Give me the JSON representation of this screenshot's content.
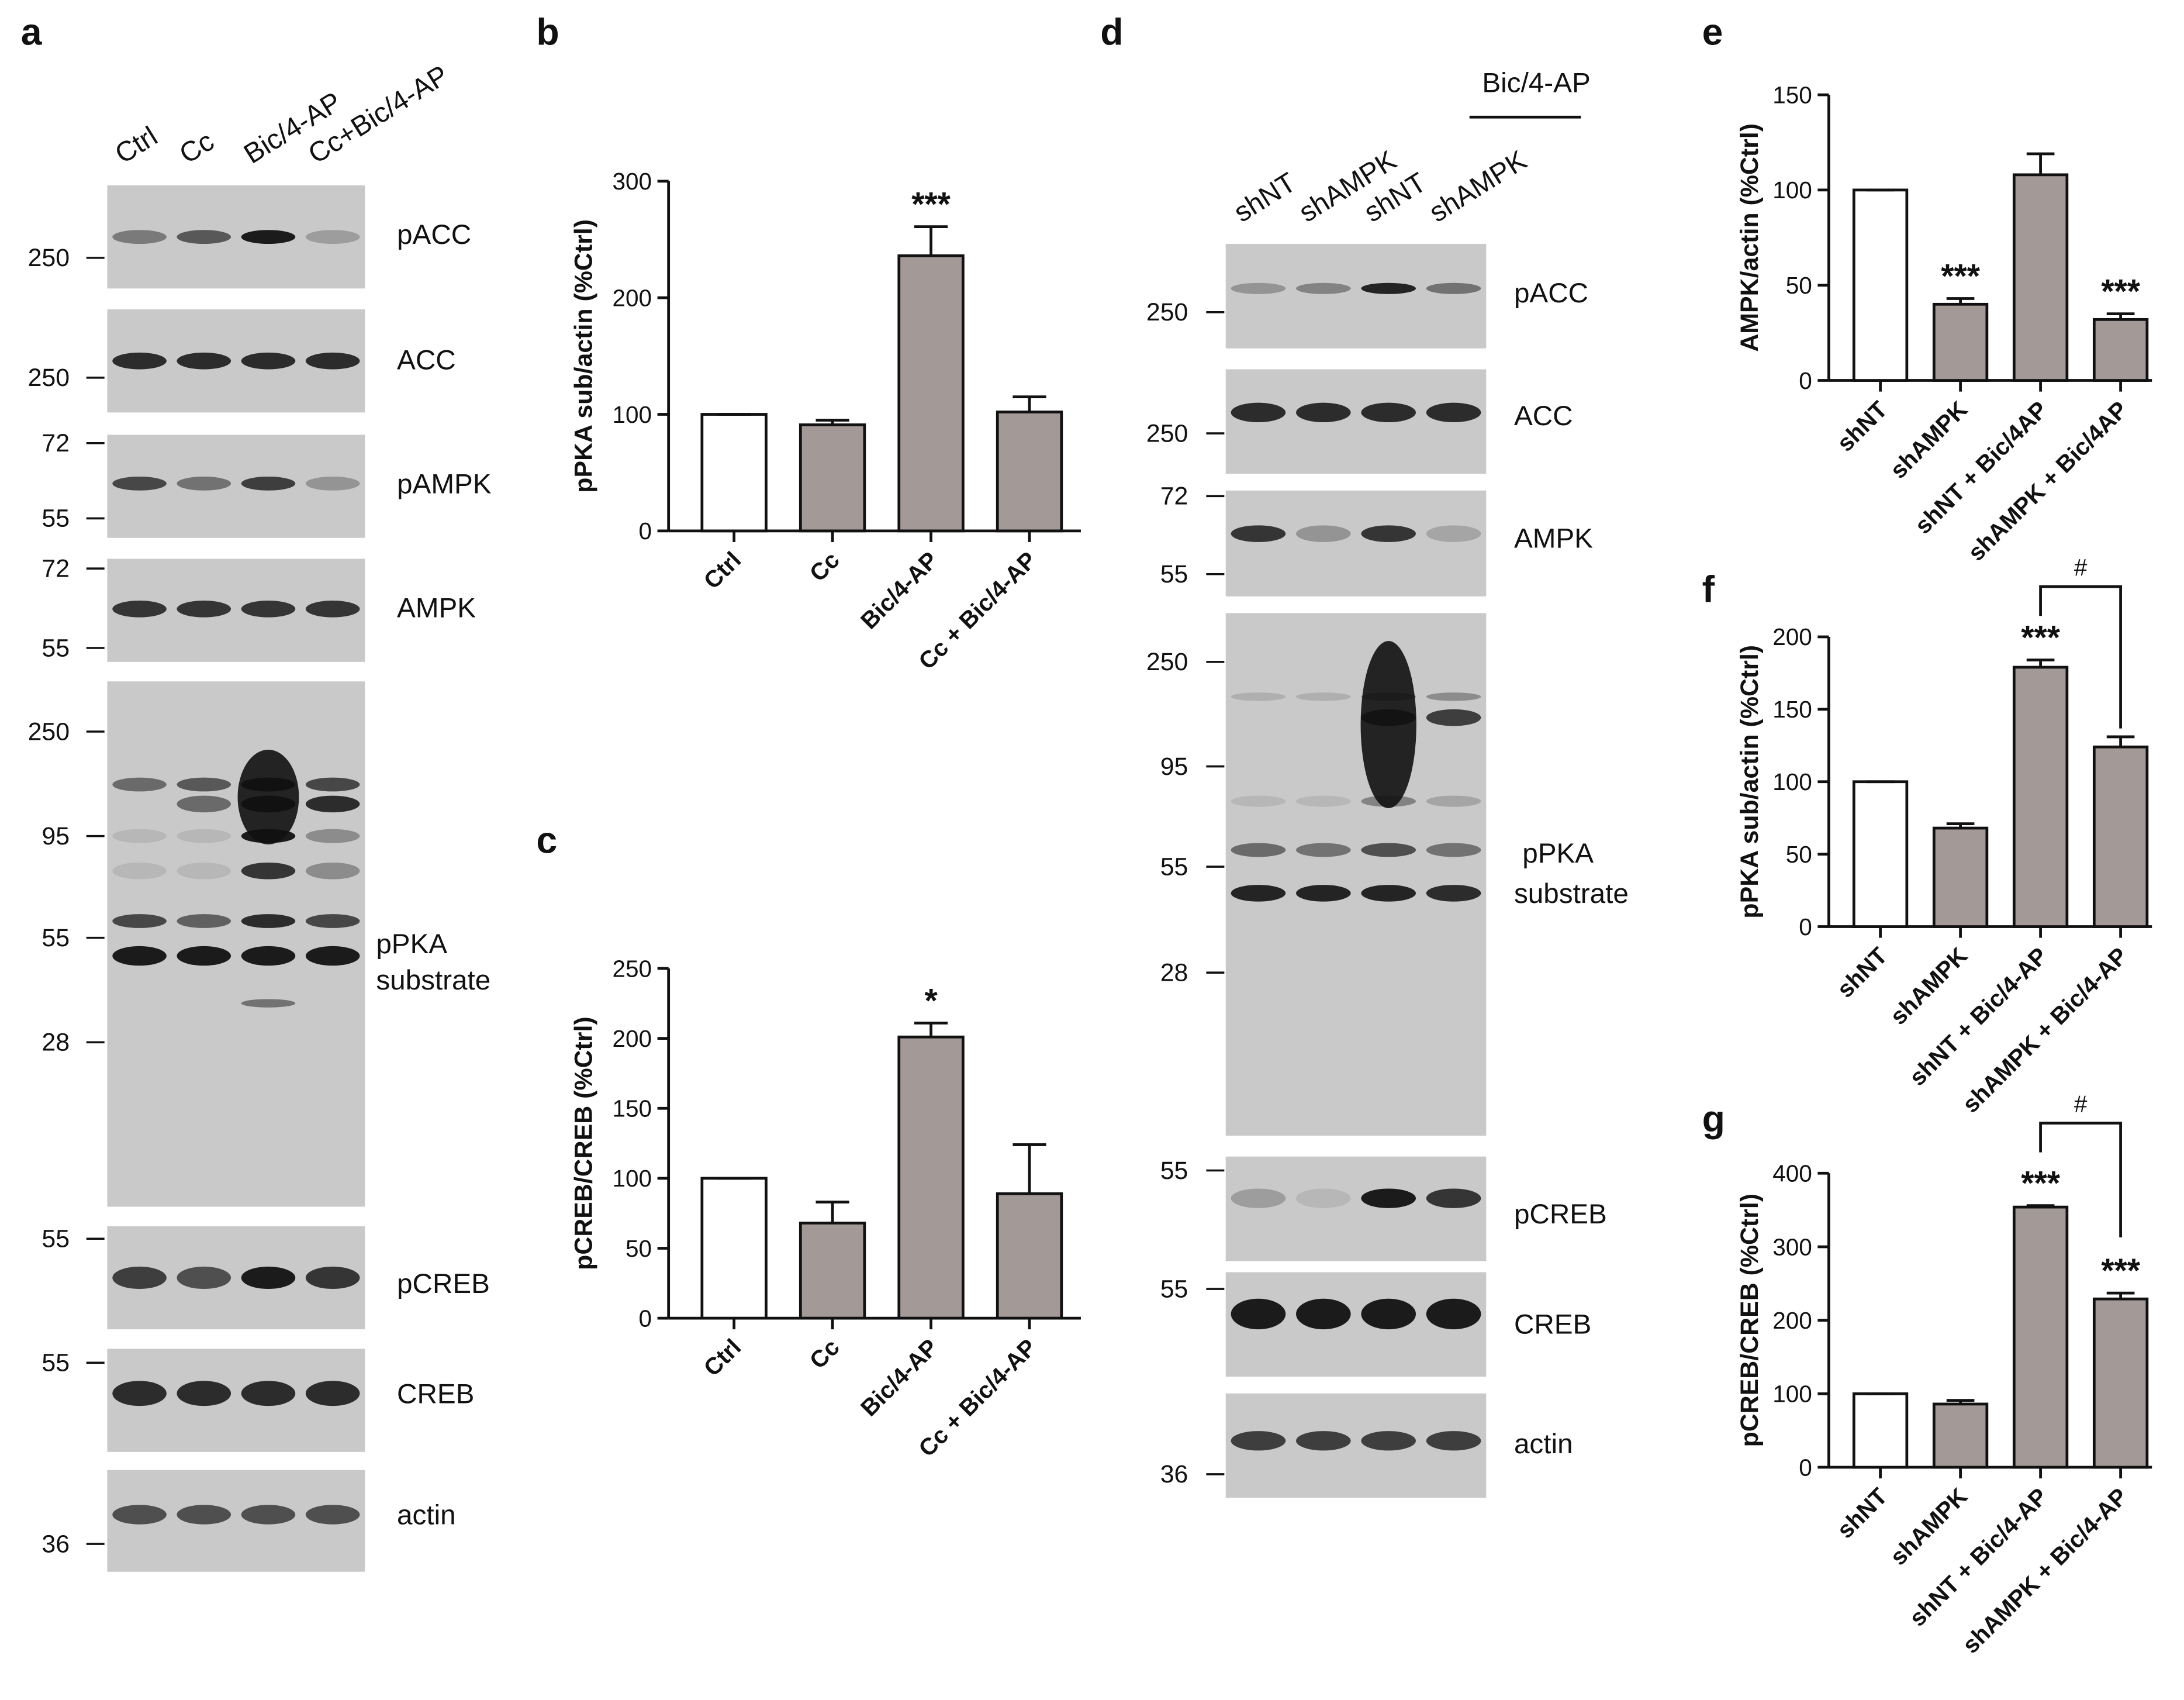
{
  "chart_data": [
    {
      "type": "bar",
      "panel": "b",
      "y_label": "pPKA sub/actin (%Ctrl)",
      "categories": [
        "Ctrl",
        "Cc",
        "Bic/4-AP",
        "Cc + Bic/4-AP"
      ],
      "values": [
        100,
        91,
        236,
        102
      ],
      "errors": [
        0,
        4,
        25,
        13
      ],
      "colors": [
        "#ffffff",
        "#a39a98",
        "#a39a98",
        "#a39a98"
      ],
      "significance": [
        null,
        null,
        "***",
        null
      ],
      "ylim": [
        0,
        300
      ],
      "yticks": [
        0,
        100,
        200,
        300
      ]
    },
    {
      "type": "bar",
      "panel": "c",
      "y_label": "pCREB/CREB (%Ctrl)",
      "categories": [
        "Ctrl",
        "Cc",
        "Bic/4-AP",
        "Cc + Bic/4-AP"
      ],
      "values": [
        100,
        68,
        201,
        89
      ],
      "errors": [
        0,
        15,
        10,
        35
      ],
      "colors": [
        "#ffffff",
        "#a39a98",
        "#a39a98",
        "#a39a98"
      ],
      "significance": [
        null,
        null,
        "*",
        null
      ],
      "ylim": [
        0,
        250
      ],
      "yticks": [
        0,
        50,
        100,
        150,
        200,
        250
      ]
    },
    {
      "type": "bar",
      "panel": "e",
      "y_label": "AMPK/actin (%Ctrl)",
      "categories": [
        "shNT",
        "shAMPK",
        "shNT + Bic/4AP",
        "shAMPK + Bic/4AP"
      ],
      "values": [
        100,
        40,
        108,
        32
      ],
      "errors": [
        0,
        3,
        11,
        3
      ],
      "colors": [
        "#ffffff",
        "#a39a98",
        "#a39a98",
        "#a39a98"
      ],
      "significance": [
        null,
        "***",
        null,
        "***"
      ],
      "ylim": [
        0,
        150
      ],
      "yticks": [
        0,
        50,
        100,
        150
      ]
    },
    {
      "type": "bar",
      "panel": "f",
      "y_label": "pPKA sub/actin (%Ctrl)",
      "categories": [
        "shNT",
        "shAMPK",
        "shNT + Bic/4-AP",
        "shAMPK + Bic/4-AP"
      ],
      "values": [
        100,
        68,
        179,
        124
      ],
      "errors": [
        0,
        3,
        5,
        7
      ],
      "colors": [
        "#ffffff",
        "#a39a98",
        "#a39a98",
        "#a39a98"
      ],
      "significance": [
        null,
        null,
        "***",
        null
      ],
      "bracket": {
        "label": "#",
        "between": [
          2,
          3
        ]
      },
      "ylim": [
        0,
        200
      ],
      "yticks": [
        0,
        50,
        100,
        150,
        200
      ]
    },
    {
      "type": "bar",
      "panel": "g",
      "y_label": "pCREB/CREB (%Ctrl)",
      "categories": [
        "shNT",
        "shAMPK",
        "shNT + Bic/4-AP",
        "shAMPK + Bic/4-AP"
      ],
      "values": [
        100,
        86,
        354,
        229
      ],
      "errors": [
        0,
        5,
        2,
        8
      ],
      "colors": [
        "#ffffff",
        "#a39a98",
        "#a39a98",
        "#a39a98"
      ],
      "significance": [
        null,
        null,
        "***",
        "***"
      ],
      "bracket": {
        "label": "#",
        "between": [
          2,
          3
        ]
      },
      "ylim": [
        0,
        400
      ],
      "yticks": [
        0,
        100,
        200,
        300,
        400
      ]
    }
  ],
  "blots": [
    {
      "panel": "a",
      "lanes": [
        "Ctrl",
        "Cc",
        "Bic/4-AP",
        "Cc+Bic/4-AP"
      ],
      "rows": [
        {
          "label": "pACC",
          "markers": [
            250
          ]
        },
        {
          "label": "ACC",
          "markers": [
            250
          ]
        },
        {
          "label": "pAMPK",
          "markers": [
            72,
            55
          ]
        },
        {
          "label": "AMPK",
          "markers": [
            72,
            55
          ]
        },
        {
          "label": [
            "pPKA",
            "substrate"
          ],
          "markers": [
            250,
            95,
            55,
            28
          ]
        },
        {
          "label": "pCREB",
          "markers": [
            55
          ]
        },
        {
          "label": "CREB",
          "markers": [
            55
          ]
        },
        {
          "label": "actin",
          "markers": [
            36
          ]
        }
      ]
    },
    {
      "panel": "d",
      "group_label": "Bic/4-AP",
      "lanes": [
        "shNT",
        "shAMPK",
        "shNT",
        "shAMPK"
      ],
      "rows": [
        {
          "label": "pACC",
          "markers": [
            250
          ]
        },
        {
          "label": "ACC",
          "markers": [
            250
          ]
        },
        {
          "label": "AMPK",
          "markers": [
            72,
            55
          ]
        },
        {
          "label": [
            "pPKA",
            "substrate"
          ],
          "markers": [
            250,
            95,
            55,
            28
          ]
        },
        {
          "label": "pCREB",
          "markers": [
            55
          ]
        },
        {
          "label": "CREB",
          "markers": [
            55
          ]
        },
        {
          "label": "actin",
          "markers": [
            36
          ]
        }
      ]
    }
  ]
}
